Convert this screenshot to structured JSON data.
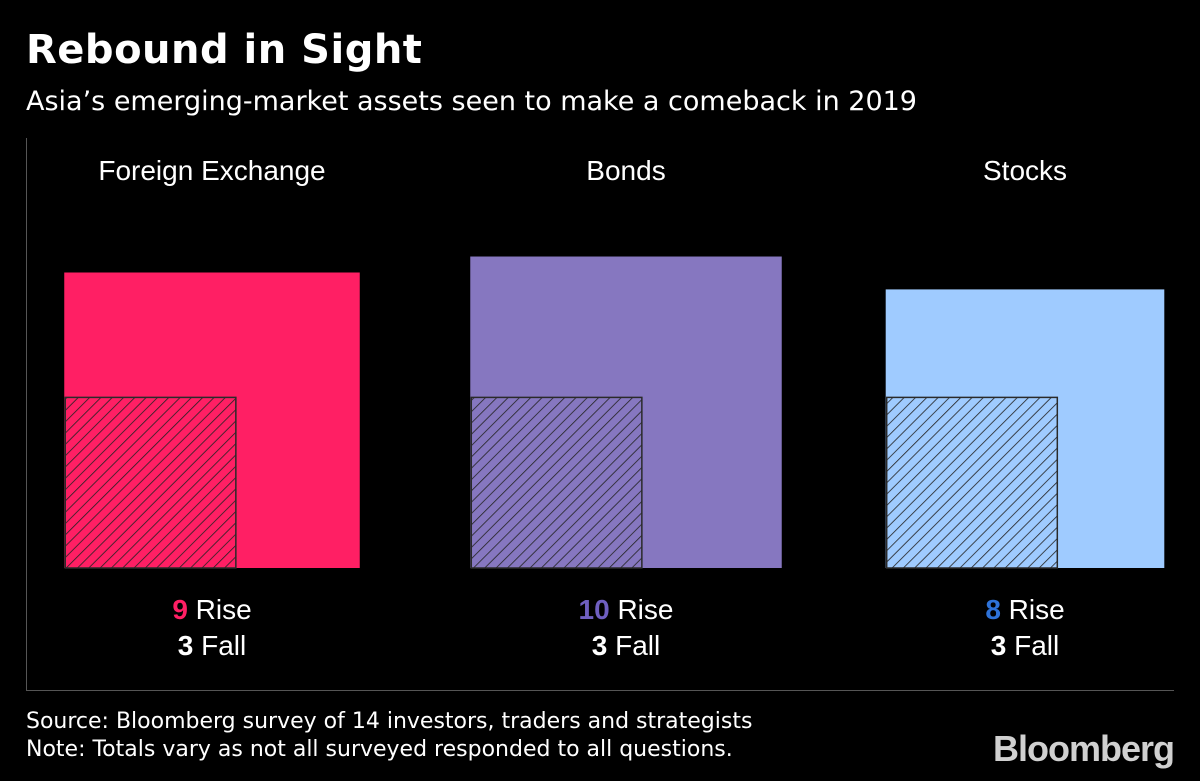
{
  "colors": {
    "background": "#000000",
    "text": "#ffffff",
    "foreign_exchange": "#ff1f64",
    "bonds": "#8677c0",
    "stocks": "#9fcbff",
    "fx_number": "#ff1f64",
    "bonds_number": "#6f5fc0",
    "stocks_number": "#2e72d8"
  },
  "chart_data": {
    "type": "nested-square-area",
    "title": "Rebound in Sight",
    "subtitle": "Asia’s emerging-market assets seen to make a comeback in 2019",
    "categories": [
      "Foreign Exchange",
      "Bonds",
      "Stocks"
    ],
    "series": [
      {
        "name": "Rise",
        "values": [
          9,
          10,
          8
        ],
        "pattern": "solid"
      },
      {
        "name": "Fall",
        "values": [
          3,
          3,
          3
        ],
        "pattern": "hatched"
      }
    ],
    "labels": [
      {
        "rise_number": "9",
        "rise_word": "Rise",
        "fall_number": "3",
        "fall_word": "Fall"
      },
      {
        "rise_number": "10",
        "rise_word": "Rise",
        "fall_number": "3",
        "fall_word": "Fall"
      },
      {
        "rise_number": "8",
        "rise_word": "Rise",
        "fall_number": "3",
        "fall_word": "Fall"
      }
    ]
  },
  "footer": {
    "source": "Source: Bloomberg survey of 14 investors, traders and strategists",
    "note": "Note: Totals vary as not all surveyed responded to all questions.",
    "brand": "Bloomberg"
  }
}
